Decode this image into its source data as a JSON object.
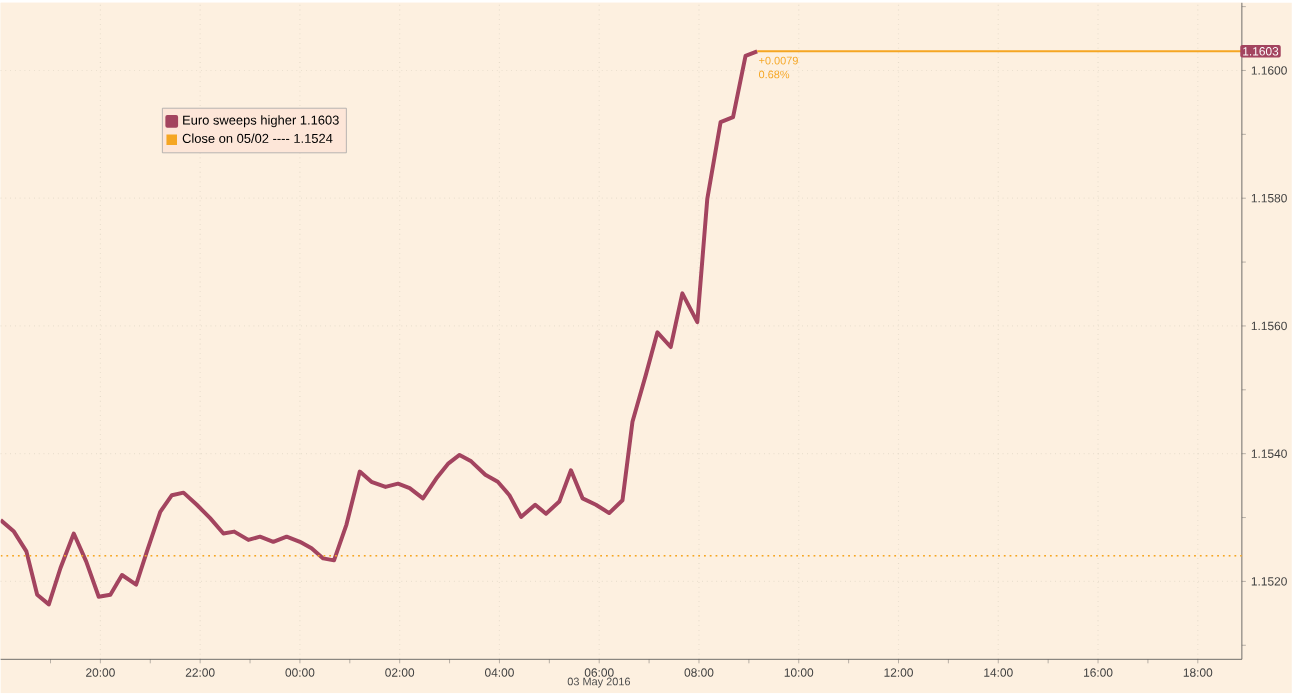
{
  "chart_data": {
    "type": "line",
    "xlim": [
      "2016-05-02T18:00",
      "2016-05-03T18:53"
    ],
    "ylim": [
      1.15078,
      1.16106
    ],
    "xticks": [
      {
        "value": "2016-05-02T19:00",
        "label": null
      },
      {
        "value": "2016-05-02T20:00",
        "label": "20:00"
      },
      {
        "value": "2016-05-02T21:00",
        "label": null
      },
      {
        "value": "2016-05-02T22:00",
        "label": "22:00"
      },
      {
        "value": "2016-05-02T23:00",
        "label": null
      },
      {
        "value": "2016-05-03T00:00",
        "label": "00:00"
      },
      {
        "value": "2016-05-03T01:00",
        "label": null
      },
      {
        "value": "2016-05-03T02:00",
        "label": "02:00"
      },
      {
        "value": "2016-05-03T03:00",
        "label": null
      },
      {
        "value": "2016-05-03T04:00",
        "label": "04:00"
      },
      {
        "value": "2016-05-03T05:00",
        "label": null
      },
      {
        "value": "2016-05-03T06:00",
        "label": "06:00"
      },
      {
        "value": "2016-05-03T07:00",
        "label": null
      },
      {
        "value": "2016-05-03T08:00",
        "label": "08:00"
      },
      {
        "value": "2016-05-03T09:00",
        "label": null
      },
      {
        "value": "2016-05-03T10:00",
        "label": "10:00"
      },
      {
        "value": "2016-05-03T11:00",
        "label": null
      },
      {
        "value": "2016-05-03T12:00",
        "label": "12:00"
      },
      {
        "value": "2016-05-03T13:00",
        "label": null
      },
      {
        "value": "2016-05-03T14:00",
        "label": "14:00"
      },
      {
        "value": "2016-05-03T15:00",
        "label": null
      },
      {
        "value": "2016-05-03T16:00",
        "label": "16:00"
      },
      {
        "value": "2016-05-03T17:00",
        "label": null
      },
      {
        "value": "2016-05-03T18:00",
        "label": "18:00"
      }
    ],
    "yticks": [
      {
        "value": 1.151,
        "label": null
      },
      {
        "value": 1.152,
        "label": "1.1520"
      },
      {
        "value": 1.153,
        "label": null
      },
      {
        "value": 1.154,
        "label": "1.1540"
      },
      {
        "value": 1.155,
        "label": null
      },
      {
        "value": 1.156,
        "label": "1.1560"
      },
      {
        "value": 1.157,
        "label": null
      },
      {
        "value": 1.158,
        "label": "1.1580"
      },
      {
        "value": 1.159,
        "label": null
      },
      {
        "value": 1.16,
        "label": "1.1600"
      },
      {
        "value": 1.161,
        "label": null
      }
    ],
    "grid": true,
    "legend": "top left",
    "series": [
      {
        "name": "Euro sweeps higher 1.1603",
        "color": "#a3445f",
        "x": [
          "2016-05-02T18:00",
          "2016-05-02T18:16",
          "2016-05-02T18:31",
          "2016-05-02T18:44",
          "2016-05-02T18:58",
          "2016-05-02T19:12",
          "2016-05-02T19:28",
          "2016-05-02T19:43",
          "2016-05-02T19:58",
          "2016-05-02T20:12",
          "2016-05-02T20:26",
          "2016-05-02T20:43",
          "2016-05-02T20:56",
          "2016-05-02T21:12",
          "2016-05-02T21:26",
          "2016-05-02T21:40",
          "2016-05-02T21:56",
          "2016-05-02T22:12",
          "2016-05-02T22:28",
          "2016-05-02T22:41",
          "2016-05-02T22:58",
          "2016-05-02T23:12",
          "2016-05-02T23:28",
          "2016-05-02T23:44",
          "2016-05-03T00:00",
          "2016-05-03T00:14",
          "2016-05-03T00:28",
          "2016-05-03T00:41",
          "2016-05-03T00:56",
          "2016-05-03T01:12",
          "2016-05-03T01:26",
          "2016-05-03T01:43",
          "2016-05-03T01:58",
          "2016-05-03T02:12",
          "2016-05-03T02:28",
          "2016-05-03T02:44",
          "2016-05-03T02:58",
          "2016-05-03T03:12",
          "2016-05-03T03:26",
          "2016-05-03T03:43",
          "2016-05-03T03:58",
          "2016-05-03T04:12",
          "2016-05-03T04:26",
          "2016-05-03T04:43",
          "2016-05-03T04:56",
          "2016-05-03T05:12",
          "2016-05-03T05:26",
          "2016-05-03T05:40",
          "2016-05-03T05:56",
          "2016-05-03T06:12",
          "2016-05-03T06:28",
          "2016-05-03T06:40",
          "2016-05-03T06:56",
          "2016-05-03T07:10",
          "2016-05-03T07:26",
          "2016-05-03T07:40",
          "2016-05-03T07:58",
          "2016-05-03T08:10",
          "2016-05-03T08:26",
          "2016-05-03T08:41",
          "2016-05-03T08:56",
          "2016-05-03T09:10"
        ],
        "values": [
          1.15296,
          1.15278,
          1.15247,
          1.15179,
          1.15164,
          1.15221,
          1.15275,
          1.15231,
          1.15176,
          1.15179,
          1.1521,
          1.15195,
          1.15247,
          1.15309,
          1.15335,
          1.15339,
          1.1532,
          1.15299,
          1.15275,
          1.15278,
          1.15265,
          1.1527,
          1.15262,
          1.1527,
          1.15262,
          1.15252,
          1.15236,
          1.15233,
          1.15289,
          1.15372,
          1.15356,
          1.15348,
          1.15353,
          1.15346,
          1.1533,
          1.15361,
          1.15384,
          1.15398,
          1.15388,
          1.15367,
          1.15356,
          1.15335,
          1.15301,
          1.1532,
          1.15306,
          1.15325,
          1.15374,
          1.1533,
          1.1532,
          1.15307,
          1.15327,
          1.1545,
          1.15523,
          1.1559,
          1.15567,
          1.15651,
          1.15606,
          1.15799,
          1.15919,
          1.15927,
          1.16023,
          1.1603
        ]
      },
      {
        "color": "#f5a623",
        "x": [
          "2016-05-03T09:10",
          "2016-05-03T18:53"
        ],
        "values": [
          1.1603,
          1.1603
        ]
      }
    ],
    "ref_lines": [
      {
        "axis": "y",
        "value": 1.1524,
        "label": "Close on 05/02 ---- 1.1524",
        "color": "#f5a623",
        "line_style": "dotted"
      }
    ],
    "annotations": [
      {
        "text": "+0.0079",
        "x": "2016-05-03T09:10",
        "y": 1.1603
      },
      {
        "text": "0.68%",
        "x": "2016-05-03T09:10",
        "y": 1.1603
      },
      {
        "text": "1.1603",
        "x": "2016-05-03T18:53",
        "y": 1.1603
      },
      "03 May 2016"
    ]
  }
}
